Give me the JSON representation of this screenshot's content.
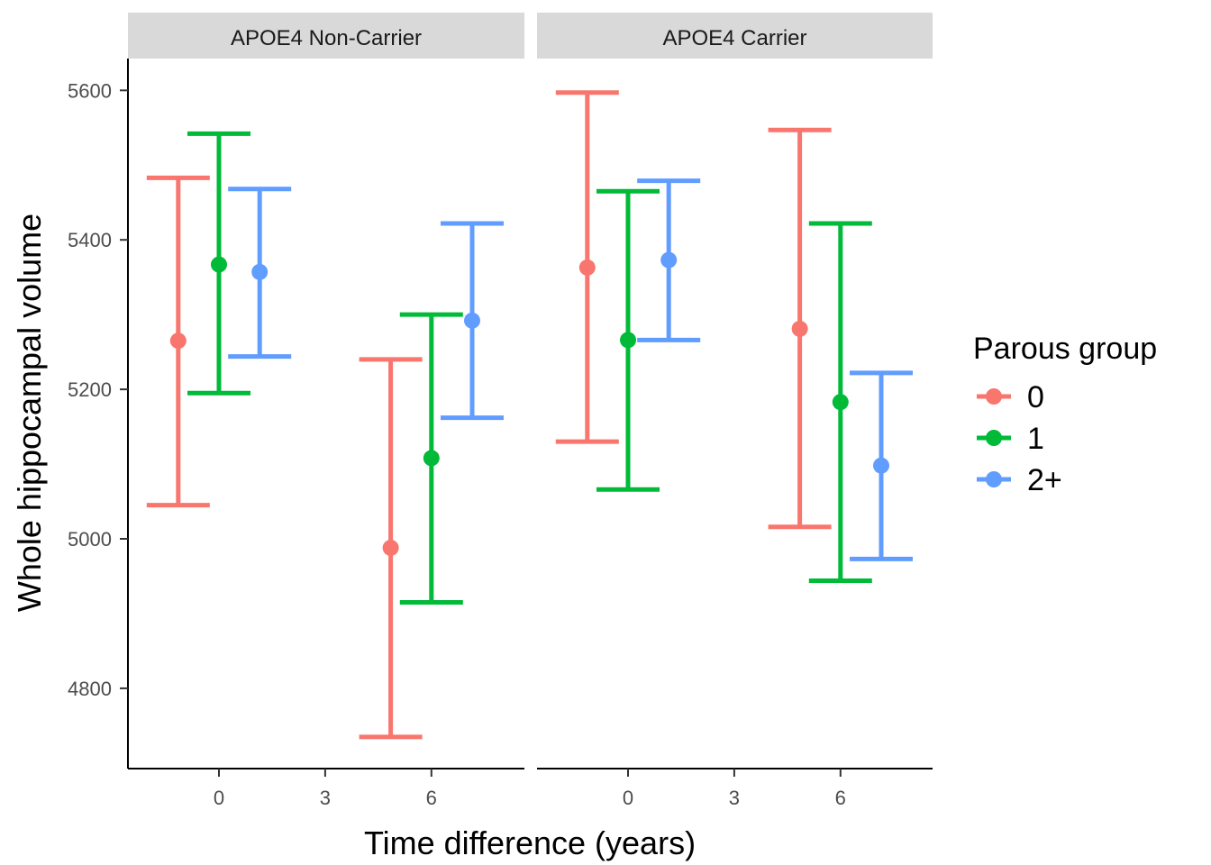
{
  "chart_data": {
    "type": "errorbar",
    "xlabel": "Time difference (years)",
    "ylabel": "Whole hippocampal volume",
    "xlim": [
      -2,
      8.2
    ],
    "ylim": [
      4700,
      5640
    ],
    "xticks": [
      0,
      3,
      6
    ],
    "yticks": [
      4800,
      5000,
      5200,
      5400,
      5600
    ],
    "grid": false,
    "legend": {
      "title": "Parous group",
      "position": "right",
      "entries": [
        {
          "label": "0",
          "color": "#F8766D"
        },
        {
          "label": "1",
          "color": "#00BA38"
        },
        {
          "label": "2+",
          "color": "#619CFF"
        }
      ]
    },
    "panels": [
      {
        "strip": "APOE4 Non-Carrier",
        "series": [
          {
            "name": "0",
            "color": "#F8766D",
            "points": [
              {
                "x": -1.15,
                "y": 5265,
                "ymin": 5045,
                "ymax": 5483
              },
              {
                "x": 4.85,
                "y": 4988,
                "ymin": 4735,
                "ymax": 5240
              }
            ]
          },
          {
            "name": "1",
            "color": "#00BA38",
            "points": [
              {
                "x": 0,
                "y": 5367,
                "ymin": 5195,
                "ymax": 5542
              },
              {
                "x": 6,
                "y": 5108,
                "ymin": 4915,
                "ymax": 5300
              }
            ]
          },
          {
            "name": "2+",
            "color": "#619CFF",
            "points": [
              {
                "x": 1.15,
                "y": 5357,
                "ymin": 5244,
                "ymax": 5468
              },
              {
                "x": 7.15,
                "y": 5292,
                "ymin": 5162,
                "ymax": 5422
              }
            ]
          }
        ]
      },
      {
        "strip": "APOE4 Carrier",
        "series": [
          {
            "name": "0",
            "color": "#F8766D",
            "points": [
              {
                "x": -1.15,
                "y": 5363,
                "ymin": 5130,
                "ymax": 5597
              },
              {
                "x": 4.85,
                "y": 5281,
                "ymin": 5016,
                "ymax": 5547
              }
            ]
          },
          {
            "name": "1",
            "color": "#00BA38",
            "points": [
              {
                "x": 0,
                "y": 5266,
                "ymin": 5066,
                "ymax": 5465
              },
              {
                "x": 6,
                "y": 5183,
                "ymin": 4944,
                "ymax": 5422
              }
            ]
          },
          {
            "name": "2+",
            "color": "#619CFF",
            "points": [
              {
                "x": 1.15,
                "y": 5373,
                "ymin": 5266,
                "ymax": 5479
              },
              {
                "x": 7.15,
                "y": 5098,
                "ymin": 4973,
                "ymax": 5222
              }
            ]
          }
        ]
      }
    ]
  }
}
